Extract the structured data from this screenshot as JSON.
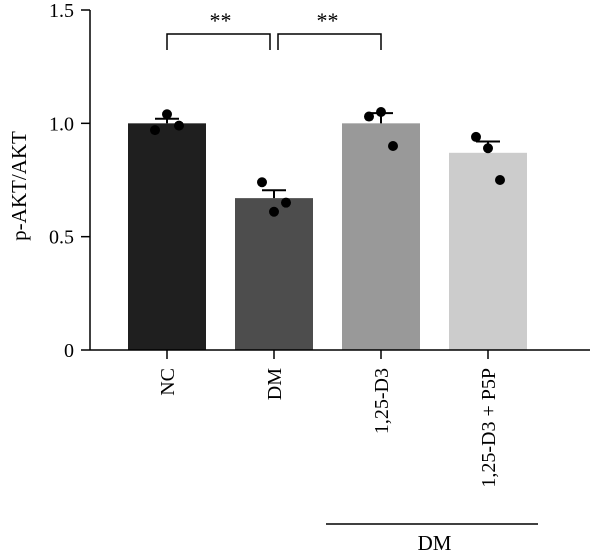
{
  "chart_data": {
    "type": "bar",
    "ylabel": "p-AKT/AKT",
    "ylim": [
      0,
      1.5
    ],
    "yticks": [
      "0",
      "0.5",
      "1.0",
      "1.5"
    ],
    "ytick_values": [
      0,
      0.5,
      1.0,
      1.5
    ],
    "categories": [
      "NC",
      "DM",
      "1,25-D3",
      "1,25-D3 + P5P"
    ],
    "values": [
      1.0,
      0.67,
      1.0,
      0.87
    ],
    "sem": [
      0.02,
      0.035,
      0.045,
      0.05
    ],
    "bar_colors": [
      "#1f1f1f",
      "#4d4d4d",
      "#999999",
      "#cccccc"
    ],
    "points": [
      [
        0.97,
        1.04,
        0.99
      ],
      [
        0.74,
        0.61,
        0.65
      ],
      [
        1.03,
        1.05,
        0.9
      ],
      [
        0.94,
        0.89,
        0.75
      ]
    ],
    "significance": [
      {
        "from": 0,
        "to": 1,
        "label": "**"
      },
      {
        "from": 1,
        "to": 2,
        "label": "**"
      }
    ],
    "group_label": {
      "text": "DM",
      "from": 2,
      "to": 3
    }
  }
}
